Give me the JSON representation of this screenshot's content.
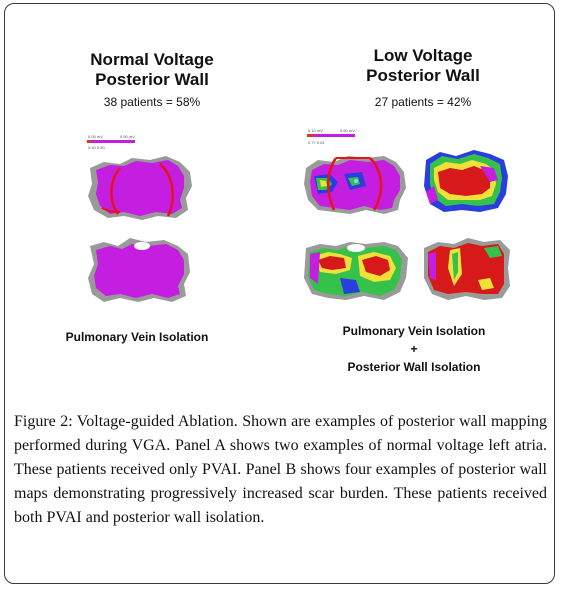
{
  "panel_a": {
    "title_line1": "Normal Voltage",
    "title_line2": "Posterior Wall",
    "stat": "38 patients = 58%",
    "scale_label_left": "0.05 mV",
    "scale_label_right": "0.50 mV",
    "scale_label_bottom": "0.40   0.50",
    "procedure_label": "Pulmonary Vein Isolation"
  },
  "panel_b": {
    "title_line1": "Low Voltage",
    "title_line2": "Posterior Wall",
    "stat": "27 patients = 42%",
    "scale_label_left": "0.10 mV",
    "scale_label_right": "0.50 mV",
    "scale_label_bottom": "0.77   0.81",
    "procedure_line1": "Pulmonary Vein Isolation",
    "procedure_line2": "+",
    "procedure_line3": "Posterior Wall Isolation"
  },
  "caption": {
    "label": "Figure 2:",
    "text": " Voltage-guided Ablation. Shown are examples of posterior wall mapping performed during VGA. Panel A shows two examples of normal voltage left atria. These patients received only PVAI. Panel B shows four examples of posterior wall maps demonstrating progressively increased scar burden. These patients received both PVAI and posterior wall isolation."
  },
  "colors": {
    "healthy_tissue": "#c41ee0",
    "scar": "#d61a1a",
    "border_zone_green": "#36c24a",
    "border_zone_yellow": "#f0e13a",
    "border_zone_blue": "#2a3ee0",
    "ablation_line": "#e8121a",
    "unmapped": "#9a9a9a"
  }
}
